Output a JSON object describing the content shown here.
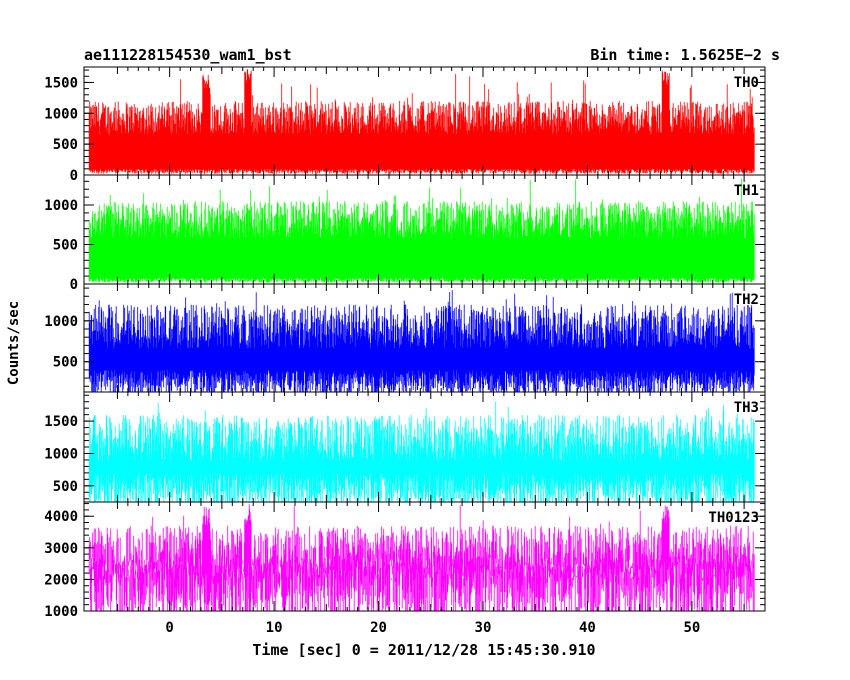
{
  "header": {
    "left_title": "ae111228154530_wam1_bst",
    "right_title": "Bin time: 1.5625E−2 s"
  },
  "ylabel": "Counts/sec",
  "xlabel": "Time [sec] 0 = 2011/12/28 15:45:30.910",
  "chart_data": {
    "type": "line",
    "x_range": [
      -8.2,
      57
    ],
    "x_data_range": [
      -7.7,
      56
    ],
    "x_ticks": [
      0,
      10,
      20,
      30,
      40,
      50
    ],
    "x_tick_labels": [
      "0",
      "10",
      "20",
      "30",
      "40",
      "50"
    ],
    "bin_time": 0.015625,
    "grid": false,
    "panels": [
      {
        "name": "TH0",
        "color": "#ff0000",
        "ylim": [
          0,
          1750
        ],
        "y_ticks": [
          0,
          500,
          1000,
          1500
        ],
        "typical_range": [
          50,
          1200
        ],
        "peak": 1750,
        "features": [
          {
            "x": 3.5,
            "max": 1650
          },
          {
            "x": 7.5,
            "max": 1750
          },
          {
            "x": 47.5,
            "max": 1700
          }
        ]
      },
      {
        "name": "TH1",
        "color": "#00ff00",
        "ylim": [
          0,
          1380
        ],
        "y_ticks": [
          0,
          500,
          1000
        ],
        "typical_range": [
          40,
          1050
        ],
        "peak": 1350,
        "features": []
      },
      {
        "name": "TH2",
        "color": "#0000ff",
        "ylim": [
          130,
          1450
        ],
        "y_ticks": [
          500,
          1000
        ],
        "typical_range": [
          200,
          1200
        ],
        "peak": 1420,
        "features": []
      },
      {
        "name": "TH3",
        "color": "#00ffff",
        "ylim": [
          250,
          1950
        ],
        "y_ticks": [
          500,
          1000,
          1500
        ],
        "typical_range": [
          350,
          1600
        ],
        "peak": 1900,
        "features": []
      },
      {
        "name": "TH0123",
        "color": "#ff00ff",
        "ylim": [
          1000,
          4450
        ],
        "y_ticks": [
          1000,
          2000,
          3000,
          4000
        ],
        "typical_range": [
          1350,
          3700
        ],
        "peak": 4400,
        "features": [
          {
            "x": 3.5,
            "max": 4300
          },
          {
            "x": 7.5,
            "max": 4400
          },
          {
            "x": 47.5,
            "max": 4350
          }
        ]
      }
    ]
  }
}
